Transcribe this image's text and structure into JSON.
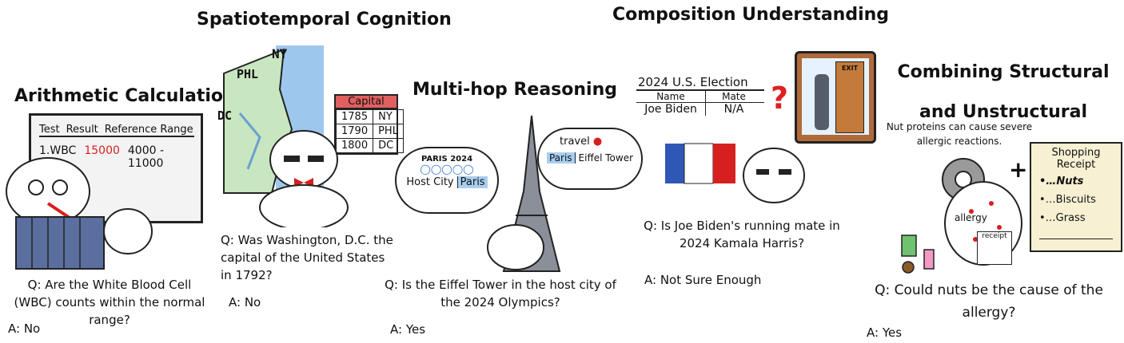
{
  "panels": {
    "arithmetic": {
      "title": "Arithmetic Calculation",
      "board_headers": [
        "Test",
        "Result",
        "Reference Range"
      ],
      "board_row": {
        "test": "1.WBC",
        "result": "15000",
        "range": "4000 - 11000"
      },
      "question": "Q: Are the White Blood Cell (WBC) counts within the normal range?",
      "answer": "A: No"
    },
    "spatiotemporal": {
      "title": "Spatiotemporal Cognition",
      "map_labels": [
        "NY",
        "PHL",
        "DC"
      ],
      "calendar_header": "Capital",
      "calendar_rows": [
        [
          "1785",
          "NY"
        ],
        [
          "1790",
          "PHL"
        ],
        [
          "1800",
          "DC"
        ]
      ],
      "question": "Q: Was Washington, D.C. the capital of the United States in 1792?",
      "answer": "A: No"
    },
    "multihop": {
      "title": "Multi-hop Reasoning",
      "olympics_label": "PARIS 2024",
      "host_city_label": "Host City",
      "host_city_value": "Paris",
      "travel_label": "travel",
      "travel_city": "Paris",
      "travel_place": "Eiffel Tower",
      "question": "Q: Is the Eiffel Tower in the host city of the 2024 Olympics?",
      "answer": "A: Yes"
    },
    "composition": {
      "title": "Composition Understanding",
      "election_title": "2024 U.S. Election",
      "col_name": "Name",
      "col_mate": "Mate",
      "row_name": "Joe Biden",
      "row_mate": "N/A",
      "exit_sign": "EXIT",
      "question": "Q: Is Joe Biden's running mate in 2024 Kamala Harris?",
      "answer": "A: Not Sure Enough"
    },
    "structural": {
      "title": "Combining Structural and Unstructural",
      "note": "Nut proteins can cause severe allergic reactions.",
      "allergy_label": "allergy",
      "receipt_small": "receipt",
      "receipt_title": "Shopping Receipt",
      "receipt_items": [
        "Nuts",
        "Biscuits",
        "Grass"
      ],
      "question": "Q: Could nuts be the cause of the allergy?",
      "answer": "A: Yes"
    }
  }
}
